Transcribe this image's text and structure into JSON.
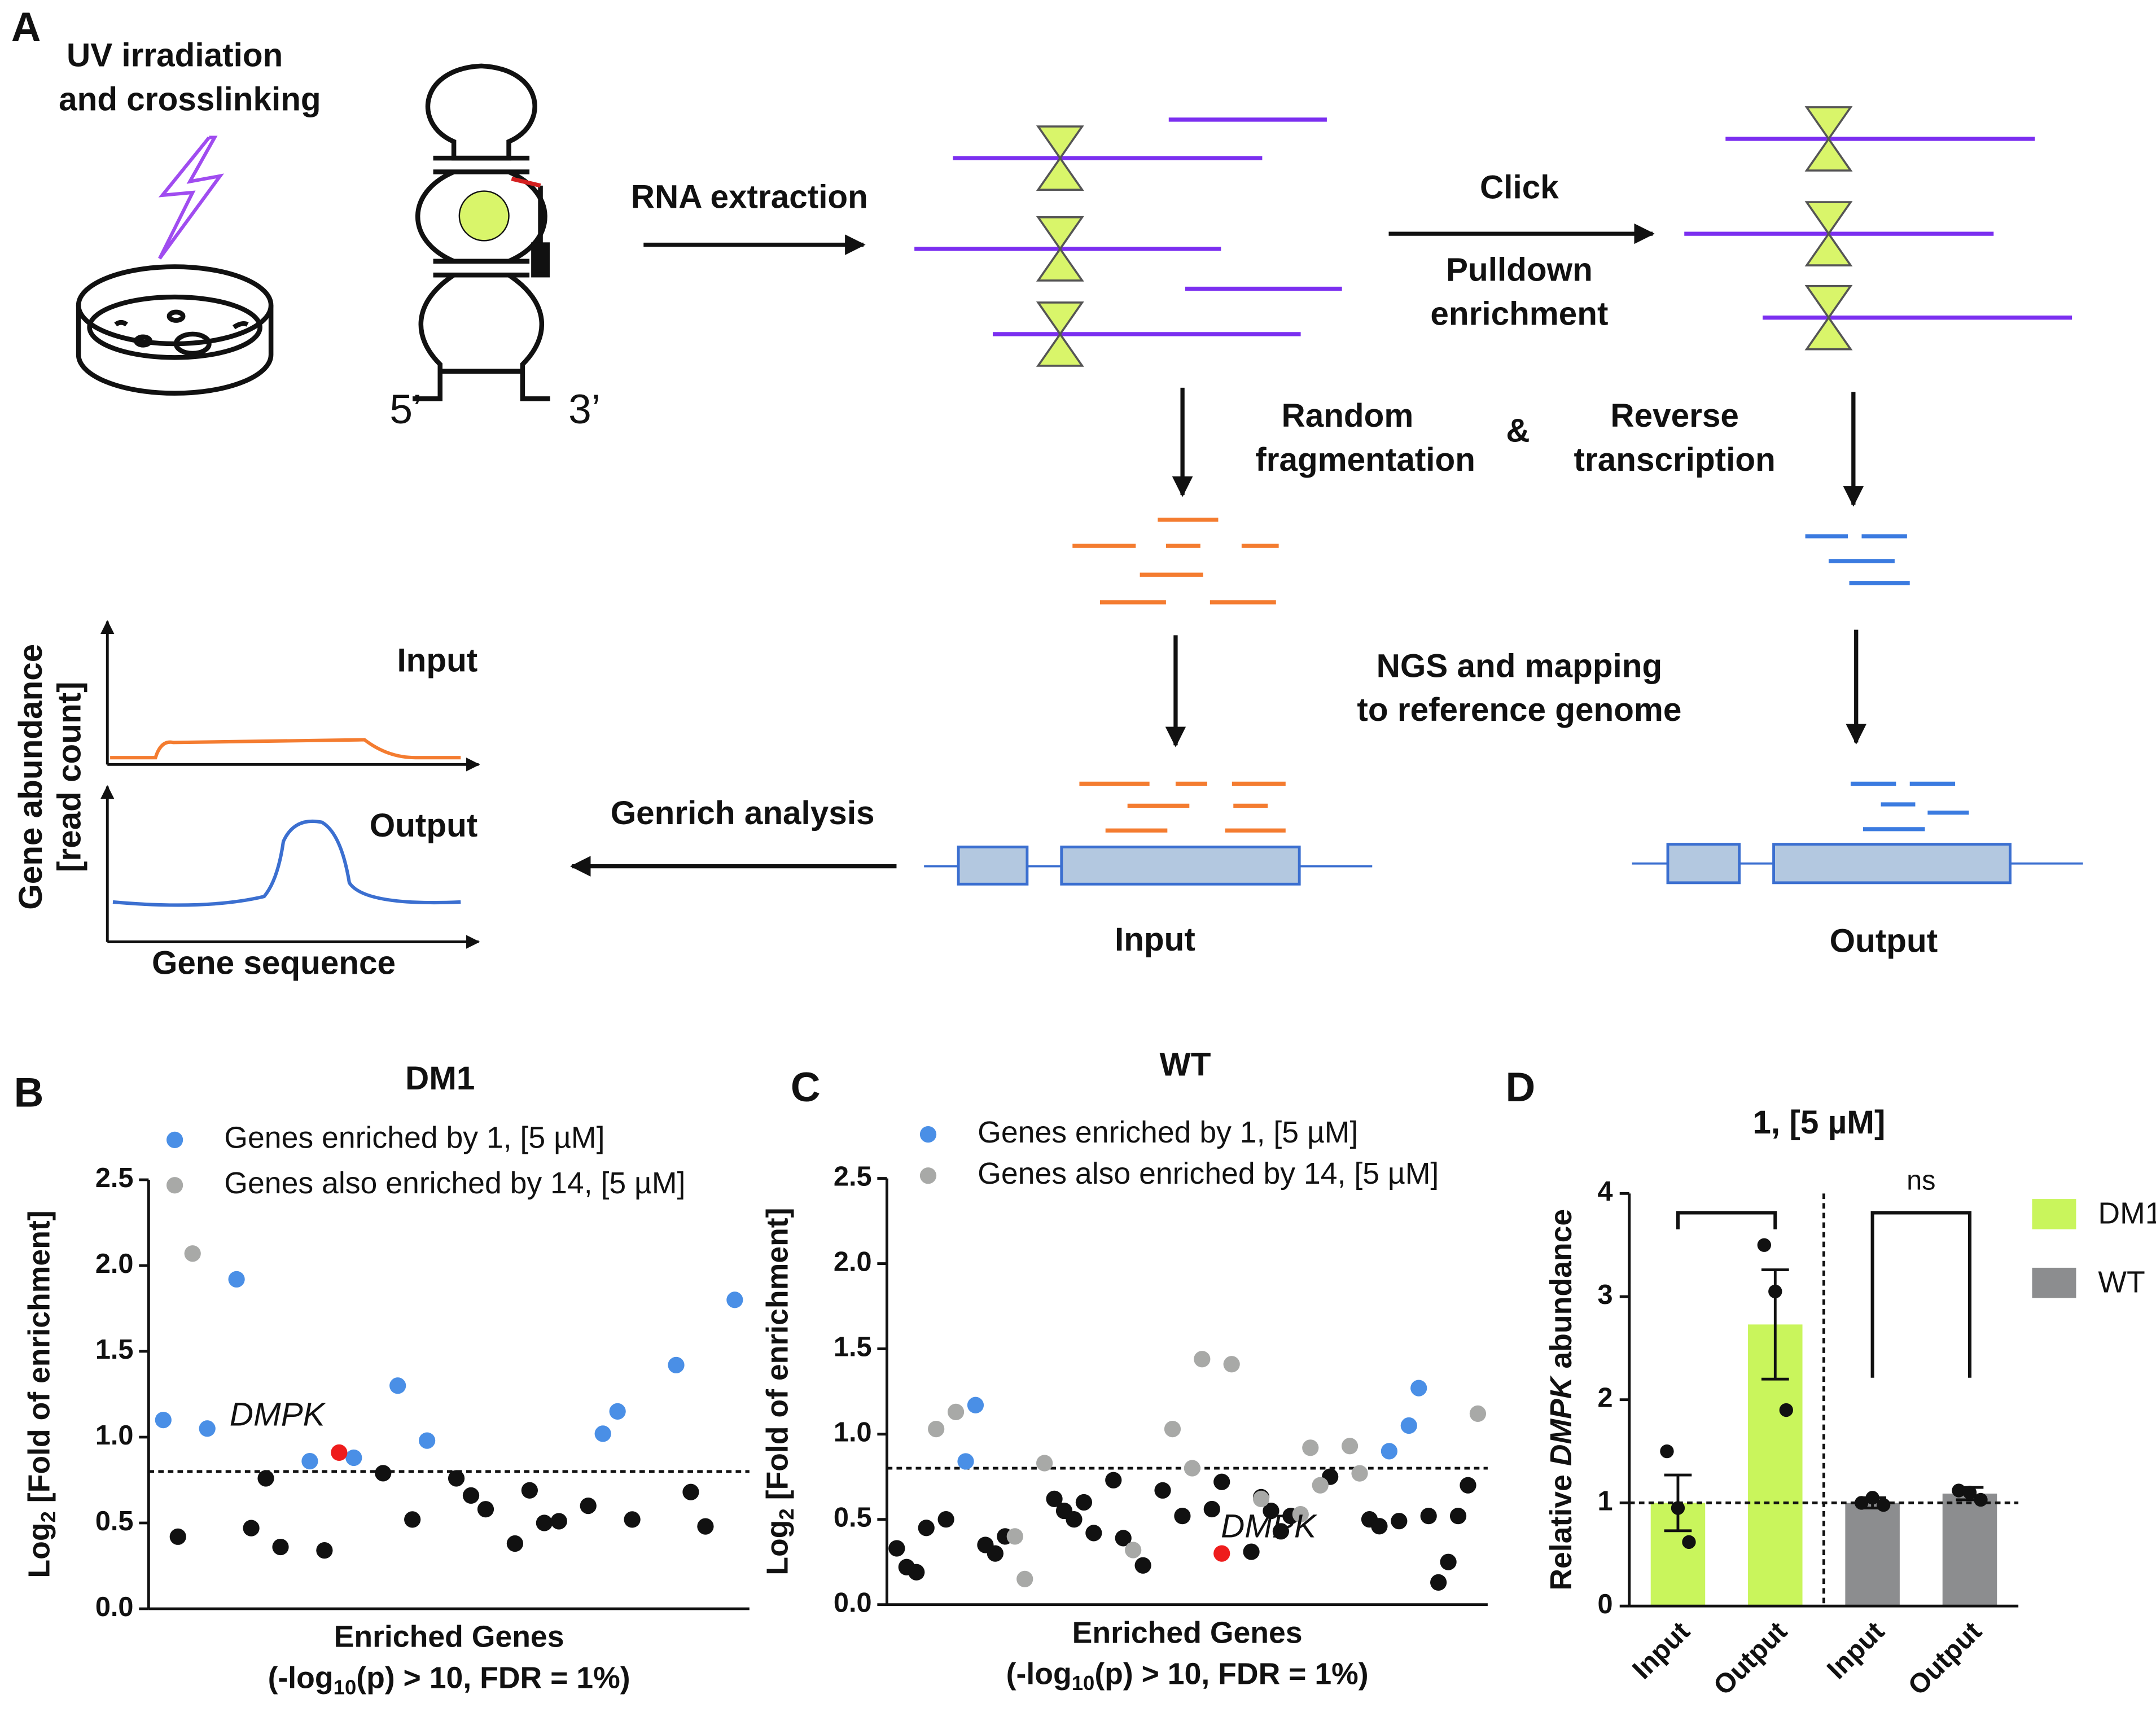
{
  "panel_a": {
    "letter": "A",
    "uv": [
      "UV irradiation",
      "and crosslinking"
    ],
    "ends": [
      "5’",
      "3’"
    ],
    "rna_extraction": "RNA extraction",
    "click": "Click",
    "pulldown": [
      "Pulldown",
      "enrichment"
    ],
    "random": [
      "Random",
      "fragmentation"
    ],
    "amp": "&",
    "reverse": [
      "Reverse",
      "transcription"
    ],
    "ngs": [
      "NGS and mapping",
      "to reference genome"
    ],
    "input": "Input",
    "output": "Output",
    "genrich": "Genrich analysis",
    "graph_input": "Input",
    "graph_output": "Output",
    "graph_ylabel": [
      "Gene abundance",
      "[read count]"
    ],
    "graph_xlabel": "Gene sequence"
  },
  "chart_data": [
    {
      "type": "scatter",
      "panel": "B",
      "title": "DM1",
      "ylabel": [
        "Log",
        "2",
        " [Fold of enrichment]"
      ],
      "xlabel": [
        "Enriched Genes",
        "(-log",
        "10",
        "(p) > 10, FDR = 1%)"
      ],
      "xlim": [
        0,
        41
      ],
      "ylim": [
        0,
        2.5
      ],
      "yticks": [
        {
          "value": 0,
          "label": "0.0"
        },
        0.5,
        {
          "value": 1,
          "label": "1.0"
        },
        1.5,
        {
          "value": 2,
          "label": "2.0"
        },
        2.5
      ],
      "reference_lines": [
        0.8
      ],
      "series": [
        {
          "color": "#111111",
          "x": [
            2,
            7,
            8,
            9,
            12,
            16,
            18,
            21,
            22,
            23,
            25,
            26,
            27,
            28,
            30,
            33,
            37,
            38
          ],
          "values": [
            0.42,
            0.47,
            0.76,
            0.36,
            0.34,
            0.79,
            0.52,
            0.76,
            0.66,
            0.58,
            0.38,
            0.69,
            0.5,
            0.51,
            0.6,
            0.52,
            0.68,
            0.48
          ]
        },
        {
          "name": "Genes enriched by 1, [5 µM]",
          "color": "#4a8fe6",
          "x": [
            1,
            4,
            6,
            11,
            14,
            17,
            19,
            31,
            32,
            36,
            40
          ],
          "values": [
            1.1,
            1.05,
            1.92,
            0.86,
            0.88,
            1.3,
            0.98,
            1.02,
            1.15,
            1.42,
            1.8
          ]
        },
        {
          "name": "Genes also enriched by 14, [5 µM]",
          "color": "#a8a9a7",
          "x": [
            3
          ],
          "values": [
            2.07
          ]
        },
        {
          "label": "DMPK",
          "color": "#ee1c1c",
          "x": [
            13
          ],
          "values": [
            0.91
          ]
        }
      ]
    },
    {
      "type": "scatter",
      "panel": "C",
      "title": "WT",
      "ylabel": [
        "Log",
        "2",
        " [Fold of enrichment]"
      ],
      "xlabel": [
        "Enriched Genes",
        "(-log",
        "10",
        "(p) > 10, FDR = 1%)"
      ],
      "xlim": [
        0,
        61
      ],
      "ylim": [
        0,
        2.5
      ],
      "yticks": [
        {
          "value": 0,
          "label": "0.0"
        },
        0.5,
        {
          "value": 1,
          "label": "1.0"
        },
        1.5,
        {
          "value": 2,
          "label": "2.0"
        },
        2.5
      ],
      "reference_lines": [
        0.8
      ],
      "series": [
        {
          "color": "#111111",
          "x": [
            1,
            2,
            3,
            4,
            6,
            10,
            11,
            12,
            17,
            18,
            19,
            20,
            21,
            23,
            24,
            26,
            28,
            30,
            33,
            34,
            37,
            38,
            39,
            40,
            41,
            45,
            49,
            50,
            52,
            55,
            56,
            57,
            58,
            59
          ],
          "values": [
            0.33,
            0.22,
            0.19,
            0.45,
            0.5,
            0.35,
            0.3,
            0.4,
            0.62,
            0.55,
            0.5,
            0.6,
            0.42,
            0.73,
            0.39,
            0.23,
            0.67,
            0.52,
            0.56,
            0.72,
            0.31,
            0.63,
            0.55,
            0.43,
            0.52,
            0.75,
            0.5,
            0.46,
            0.49,
            0.52,
            0.13,
            0.25,
            0.52,
            0.7
          ]
        },
        {
          "name": "Genes enriched by 1, [5 µM]",
          "color": "#4a8fe6",
          "x": [
            8,
            9,
            51,
            53,
            54
          ],
          "values": [
            0.84,
            1.17,
            0.9,
            1.05,
            1.27
          ]
        },
        {
          "name": "Genes also enriched by 14, [5 µM]",
          "color": "#a8a9a7",
          "x": [
            5,
            7,
            13,
            14,
            16,
            25,
            29,
            31,
            32,
            35,
            38,
            42,
            43,
            44,
            47,
            48,
            60
          ],
          "values": [
            1.03,
            1.13,
            0.4,
            0.15,
            0.83,
            0.32,
            1.03,
            0.8,
            1.44,
            1.41,
            0.62,
            0.53,
            0.92,
            0.7,
            0.93,
            0.77,
            1.12
          ]
        },
        {
          "label": "DMPK",
          "color": "#ee1c1c",
          "x": [
            34
          ],
          "values": [
            0.3
          ]
        }
      ]
    },
    {
      "type": "bar",
      "panel": "D",
      "title": "1, [5 µM]",
      "ylabel": [
        "Relative ",
        "DMPK",
        " abundance"
      ],
      "categories": [
        "Input",
        "Output",
        "Input",
        "Output"
      ],
      "ylim": [
        0,
        4
      ],
      "yticks": [
        0,
        1,
        2,
        3,
        4
      ],
      "reference_lines": [
        1
      ],
      "annotation": "ns",
      "series": [
        {
          "name": "DM1",
          "color": "#c9f55c",
          "values": [
            1.0,
            2.73,
            null,
            null
          ],
          "errors": [
            0.27,
            0.53,
            null,
            null
          ],
          "points": [
            [
              1.5,
              0.95,
              0.62
            ],
            [
              3.5,
              3.05,
              1.9
            ],
            null,
            null
          ]
        },
        {
          "name": "WT",
          "color": "#8c8d8f",
          "values": [
            null,
            null,
            1.0,
            1.09
          ],
          "errors": [
            null,
            null,
            0.05,
            0.06
          ],
          "points": [
            null,
            null,
            [
              1.0,
              1.05,
              0.98
            ],
            [
              1.12,
              1.1,
              1.03
            ]
          ]
        }
      ]
    }
  ]
}
